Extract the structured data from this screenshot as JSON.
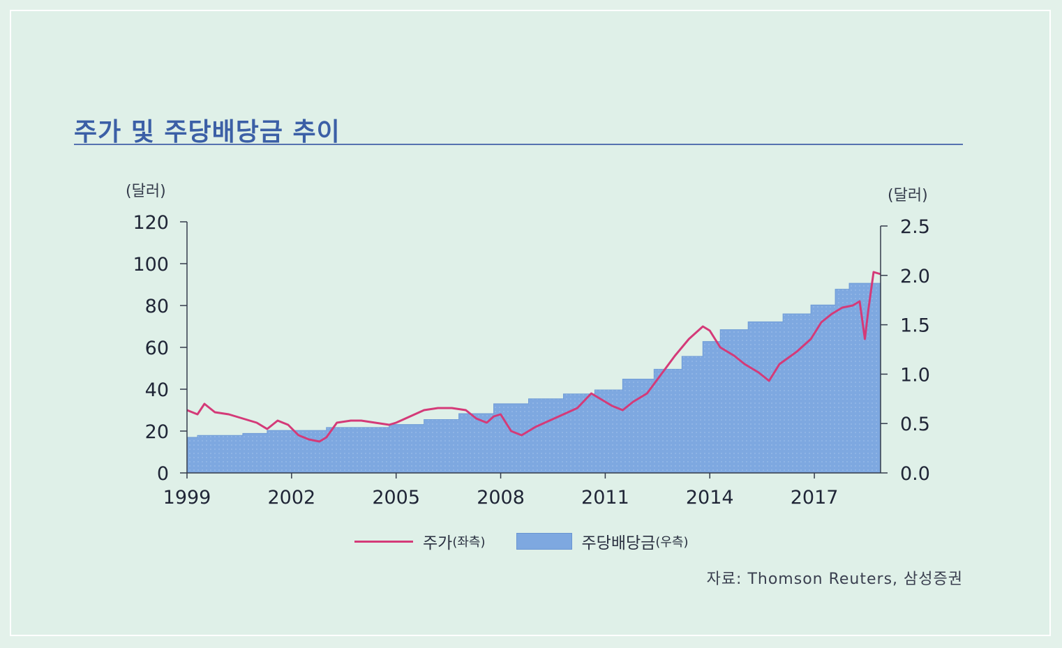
{
  "title": "주가 및 주당배당금 추이",
  "units": {
    "left": "(달러)",
    "right": "(달러)"
  },
  "legend": {
    "price_main": "주가",
    "price_sub": "(좌측)",
    "dividend_main": "주당배당금",
    "dividend_sub": "(우측)"
  },
  "source": "자료: Thomson Reuters, 삼성증권",
  "colors": {
    "price": "#d43a78",
    "dividend": "#7ea8e0",
    "axis": "#333a4a",
    "title": "#3b5fa6"
  },
  "chart_data": {
    "type": "line+area",
    "x_ticks": [
      "1999",
      "2002",
      "2005",
      "2008",
      "2011",
      "2014",
      "2017"
    ],
    "xlim": [
      1999,
      2018.9
    ],
    "y_left": {
      "label": "(달러)",
      "ticks": [
        "0",
        "20",
        "40",
        "60",
        "80",
        "100",
        "120"
      ],
      "lim": [
        0,
        120
      ]
    },
    "y_right": {
      "label": "(달러)",
      "ticks": [
        "0.0",
        "0.5",
        "1.0",
        "1.5",
        "2.0",
        "2.5"
      ],
      "lim": [
        0,
        2.5
      ]
    },
    "series": [
      {
        "name": "주가(좌측)",
        "axis": "left",
        "style": "line",
        "points": [
          [
            1999.0,
            30
          ],
          [
            1999.3,
            28
          ],
          [
            1999.5,
            33
          ],
          [
            1999.8,
            29
          ],
          [
            2000.2,
            28
          ],
          [
            2000.6,
            26
          ],
          [
            2001.0,
            24
          ],
          [
            2001.3,
            21
          ],
          [
            2001.6,
            25
          ],
          [
            2001.9,
            23
          ],
          [
            2002.2,
            18
          ],
          [
            2002.5,
            16
          ],
          [
            2002.8,
            15
          ],
          [
            2003.0,
            17
          ],
          [
            2003.3,
            24
          ],
          [
            2003.7,
            25
          ],
          [
            2004.0,
            25
          ],
          [
            2004.4,
            24
          ],
          [
            2004.8,
            23
          ],
          [
            2005.0,
            24
          ],
          [
            2005.4,
            27
          ],
          [
            2005.8,
            30
          ],
          [
            2006.2,
            31
          ],
          [
            2006.6,
            31
          ],
          [
            2007.0,
            30
          ],
          [
            2007.3,
            26
          ],
          [
            2007.6,
            24
          ],
          [
            2007.8,
            27
          ],
          [
            2008.0,
            28
          ],
          [
            2008.3,
            20
          ],
          [
            2008.6,
            18
          ],
          [
            2009.0,
            22
          ],
          [
            2009.4,
            25
          ],
          [
            2009.8,
            28
          ],
          [
            2010.2,
            31
          ],
          [
            2010.6,
            38
          ],
          [
            2010.9,
            35
          ],
          [
            2011.2,
            32
          ],
          [
            2011.5,
            30
          ],
          [
            2011.8,
            34
          ],
          [
            2012.2,
            38
          ],
          [
            2012.6,
            47
          ],
          [
            2013.0,
            56
          ],
          [
            2013.4,
            64
          ],
          [
            2013.8,
            70
          ],
          [
            2014.0,
            68
          ],
          [
            2014.3,
            60
          ],
          [
            2014.7,
            56
          ],
          [
            2015.0,
            52
          ],
          [
            2015.4,
            48
          ],
          [
            2015.7,
            44
          ],
          [
            2016.0,
            52
          ],
          [
            2016.5,
            58
          ],
          [
            2016.9,
            64
          ],
          [
            2017.2,
            72
          ],
          [
            2017.5,
            76
          ],
          [
            2017.8,
            79
          ],
          [
            2018.1,
            80
          ],
          [
            2018.3,
            82
          ],
          [
            2018.45,
            64
          ],
          [
            2018.55,
            78
          ],
          [
            2018.7,
            96
          ],
          [
            2018.9,
            95
          ]
        ]
      },
      {
        "name": "주당배당금(우측)",
        "axis": "right",
        "style": "step-area",
        "points": [
          [
            1999.0,
            0.36
          ],
          [
            1999.3,
            0.38
          ],
          [
            2000.6,
            0.4
          ],
          [
            2001.3,
            0.43
          ],
          [
            2003.0,
            0.46
          ],
          [
            2004.8,
            0.49
          ],
          [
            2005.8,
            0.54
          ],
          [
            2006.8,
            0.6
          ],
          [
            2007.8,
            0.7
          ],
          [
            2008.8,
            0.75
          ],
          [
            2009.8,
            0.8
          ],
          [
            2010.7,
            0.84
          ],
          [
            2011.5,
            0.95
          ],
          [
            2012.4,
            1.05
          ],
          [
            2013.2,
            1.18
          ],
          [
            2013.8,
            1.33
          ],
          [
            2014.3,
            1.45
          ],
          [
            2015.1,
            1.53
          ],
          [
            2016.1,
            1.61
          ],
          [
            2016.9,
            1.7
          ],
          [
            2017.6,
            1.86
          ],
          [
            2018.0,
            1.92
          ],
          [
            2018.9,
            1.92
          ]
        ]
      }
    ]
  }
}
